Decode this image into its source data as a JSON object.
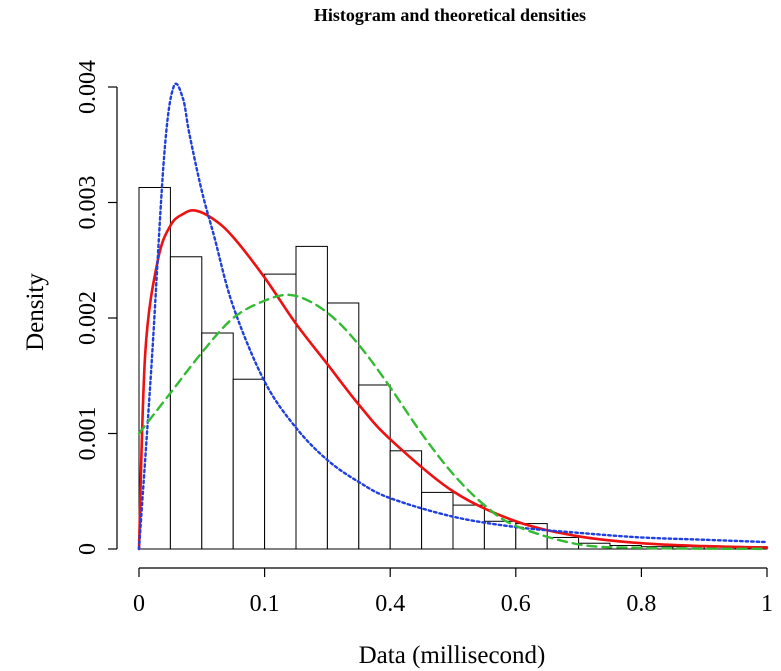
{
  "chart_data": {
    "type": "bar",
    "title": "Histogram and theoretical densities",
    "xlabel": "Data (millisecond)",
    "ylabel": "Density",
    "xlim": [
      0,
      1
    ],
    "ylim": [
      0,
      0.004
    ],
    "grid": false,
    "x_tick_labels": [
      "0",
      "0.1",
      "0.4",
      "0.6",
      "0.8",
      "1"
    ],
    "y_tick_labels": [
      "0",
      "0.001",
      "0.002",
      "0.003",
      "0.004"
    ],
    "bins": [
      {
        "start": 0.0,
        "end": 0.05,
        "density": 0.00313
      },
      {
        "start": 0.05,
        "end": 0.1,
        "density": 0.00253
      },
      {
        "start": 0.1,
        "end": 0.15,
        "density": 0.00187
      },
      {
        "start": 0.15,
        "end": 0.2,
        "density": 0.00147
      },
      {
        "start": 0.2,
        "end": 0.25,
        "density": 0.00238
      },
      {
        "start": 0.25,
        "end": 0.3,
        "density": 0.00262
      },
      {
        "start": 0.3,
        "end": 0.35,
        "density": 0.00213
      },
      {
        "start": 0.35,
        "end": 0.4,
        "density": 0.00142
      },
      {
        "start": 0.4,
        "end": 0.45,
        "density": 0.00085
      },
      {
        "start": 0.45,
        "end": 0.5,
        "density": 0.00049
      },
      {
        "start": 0.5,
        "end": 0.55,
        "density": 0.00038
      },
      {
        "start": 0.55,
        "end": 0.6,
        "density": 0.00024
      },
      {
        "start": 0.6,
        "end": 0.65,
        "density": 0.00022
      },
      {
        "start": 0.65,
        "end": 0.7,
        "density": 0.0001
      },
      {
        "start": 0.7,
        "end": 0.75,
        "density": 5e-05
      },
      {
        "start": 0.75,
        "end": 0.8,
        "density": 3e-05
      },
      {
        "start": 0.8,
        "end": 0.85,
        "density": 2e-05
      },
      {
        "start": 0.85,
        "end": 0.9,
        "density": 2e-05
      },
      {
        "start": 0.9,
        "end": 0.95,
        "density": 2e-05
      },
      {
        "start": 0.95,
        "end": 1.0,
        "density": 2e-05
      }
    ],
    "series": [
      {
        "line_type": "solid",
        "color": "#ee1111",
        "x": [
          0,
          0.01,
          0.03,
          0.05,
          0.07,
          0.09,
          0.12,
          0.15,
          0.2,
          0.25,
          0.3,
          0.35,
          0.4,
          0.5,
          0.6,
          0.7,
          0.8,
          0.9,
          1.0
        ],
        "y": [
          0,
          0.0017,
          0.0025,
          0.0028,
          0.0029,
          0.00293,
          0.00285,
          0.0027,
          0.00235,
          0.00195,
          0.0016,
          0.00125,
          0.00095,
          0.0005,
          0.00024,
          0.00011,
          5e-05,
          2.5e-05,
          1.2e-05
        ]
      },
      {
        "line_type": "dotted",
        "color": "#1f3fe0",
        "x": [
          0,
          0.02,
          0.04,
          0.055,
          0.07,
          0.08,
          0.1,
          0.12,
          0.15,
          0.2,
          0.25,
          0.3,
          0.35,
          0.4,
          0.5,
          0.6,
          0.7,
          0.8,
          0.9,
          1.0
        ],
        "y": [
          0,
          0.0016,
          0.0034,
          0.004,
          0.0039,
          0.0036,
          0.0031,
          0.0027,
          0.0021,
          0.00145,
          0.00105,
          0.00077,
          0.00058,
          0.00044,
          0.00028,
          0.00019,
          0.00014,
          0.0001,
          8e-05,
          6e-05
        ]
      },
      {
        "line_type": "dashed",
        "color": "#33bb33",
        "x": [
          0,
          0.05,
          0.1,
          0.15,
          0.2,
          0.24,
          0.28,
          0.32,
          0.36,
          0.4,
          0.45,
          0.5,
          0.55,
          0.6,
          0.7,
          0.8,
          0.9,
          1.0
        ],
        "y": [
          0.001,
          0.00135,
          0.0017,
          0.002,
          0.00215,
          0.0022,
          0.00212,
          0.00195,
          0.0017,
          0.0014,
          0.001,
          0.00065,
          0.00038,
          0.0002,
          4e-05,
          1e-05,
          3e-06,
          1e-06
        ]
      }
    ]
  }
}
